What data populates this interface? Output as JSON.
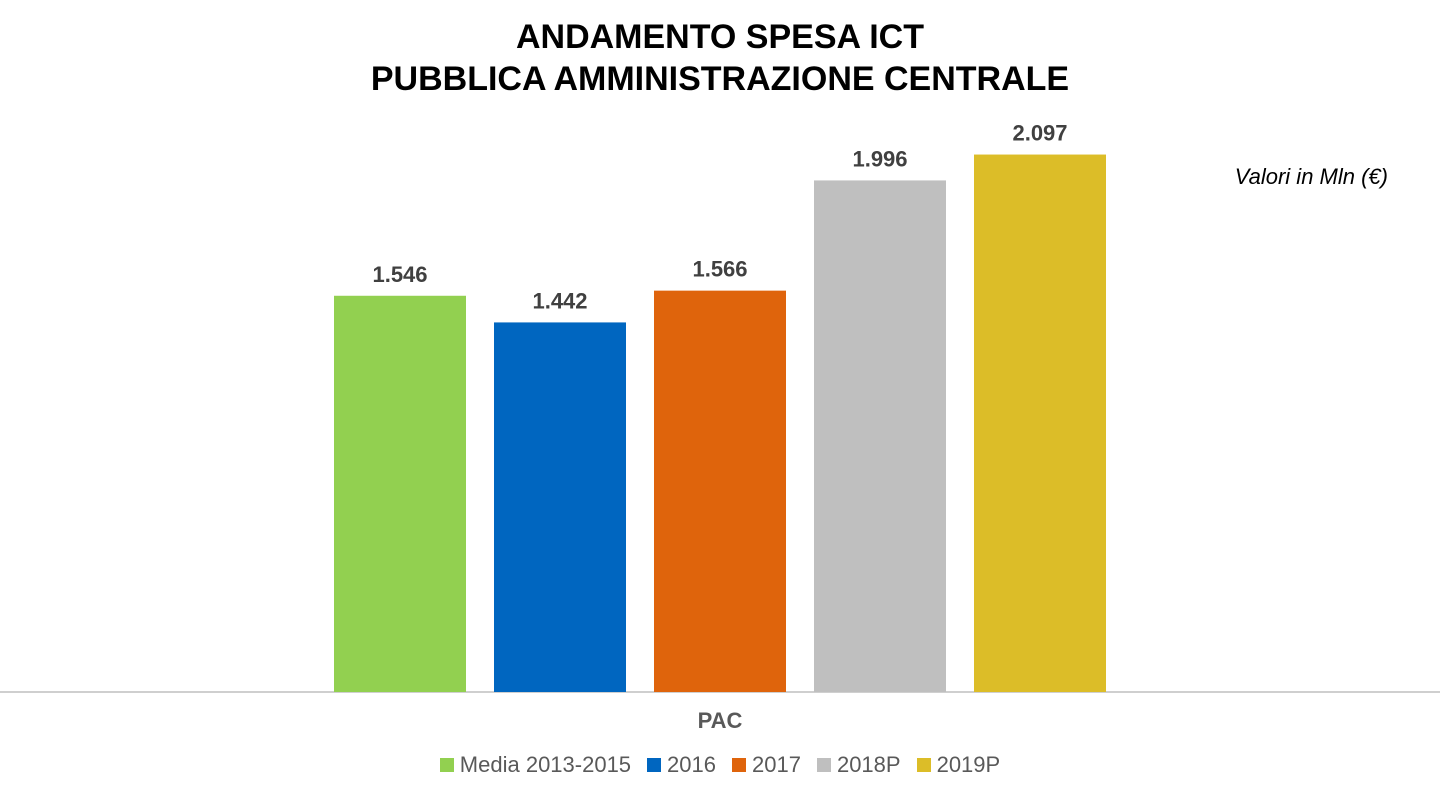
{
  "title_line1": "ANDAMENTO SPESA ICT",
  "title_line2": "PUBBLICA AMMINISTRAZIONE CENTRALE",
  "units_note": "Valori in Mln (€)",
  "chart_data": {
    "type": "bar",
    "categories": [
      "PAC"
    ],
    "series": [
      {
        "name": "Media 2013-2015",
        "values": [
          1546
        ],
        "label": "1.546",
        "color": "#92D050"
      },
      {
        "name": "2016",
        "values": [
          1442
        ],
        "label": "1.442",
        "color": "#0066C0"
      },
      {
        "name": "2017",
        "values": [
          1566
        ],
        "label": "1.566",
        "color": "#DF640C"
      },
      {
        "name": "2018P",
        "values": [
          1996
        ],
        "label": "1.996",
        "color": "#BFBFBF"
      },
      {
        "name": "2019P",
        "values": [
          2097
        ],
        "label": "2.097",
        "color": "#DCBD28"
      }
    ],
    "ylim": [
      0,
      2700
    ],
    "grid": false,
    "legend": "bottom",
    "label_color": "#404040",
    "axis_color": "#BFBFBF"
  }
}
